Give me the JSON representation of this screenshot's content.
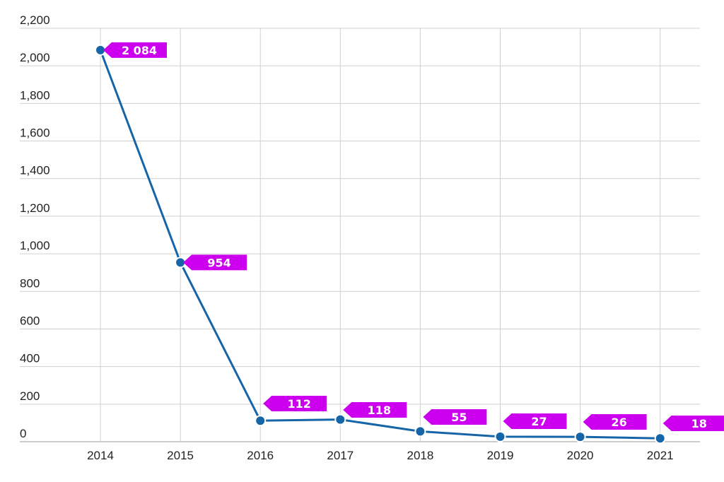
{
  "chart_data": {
    "type": "line",
    "title": "",
    "xlabel": "",
    "ylabel": "",
    "x": [
      "2014",
      "2015",
      "2016",
      "2017",
      "2018",
      "2019",
      "2020",
      "2021"
    ],
    "series": [
      {
        "values": [
          2084,
          954,
          112,
          118,
          55,
          27,
          26,
          18
        ],
        "labels": [
          "2 084",
          "954",
          "112",
          "118",
          "55",
          "27",
          "26",
          "18"
        ],
        "color": "#1565a8",
        "label_color": "#cc00ee"
      }
    ],
    "ylim": [
      0,
      2200
    ],
    "y_ticks": [
      0,
      200,
      400,
      600,
      800,
      1000,
      1200,
      1400,
      1600,
      1800,
      2000,
      2200
    ],
    "y_tick_labels": [
      "0",
      "200",
      "400",
      "600",
      "800",
      "1,000",
      "1,200",
      "1,400",
      "1,600",
      "1,800",
      "2,000",
      "2,200"
    ],
    "grid": true,
    "legend": "none"
  }
}
